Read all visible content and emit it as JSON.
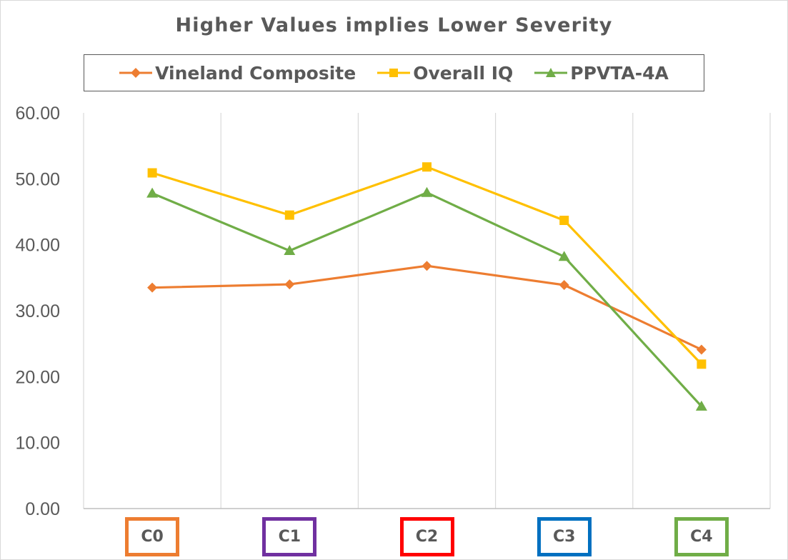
{
  "chart_data": {
    "type": "line",
    "title": "Higher Values implies Lower Severity",
    "categories": [
      "C0",
      "C1",
      "C2",
      "C3",
      "C4"
    ],
    "category_box_colors": [
      "#ed7d31",
      "#7030a0",
      "#ff0000",
      "#0070c0",
      "#70ad47"
    ],
    "ylim": [
      0,
      60
    ],
    "yticks": [
      "0.00",
      "10.00",
      "20.00",
      "30.00",
      "40.00",
      "50.00",
      "60.00"
    ],
    "grid": "vertical",
    "legend_position": "top",
    "series": [
      {
        "name": "Vineland Composite",
        "color": "#ed7d31",
        "marker": "diamond",
        "values": [
          33.5,
          34.0,
          36.8,
          33.9,
          24.1
        ]
      },
      {
        "name": "Overall IQ",
        "color": "#ffc000",
        "marker": "square",
        "values": [
          50.9,
          44.5,
          51.8,
          43.7,
          21.9
        ]
      },
      {
        "name": "PPVTA-4A",
        "color": "#70ad47",
        "marker": "triangle",
        "values": [
          47.8,
          39.1,
          47.9,
          38.2,
          15.5
        ]
      }
    ]
  }
}
